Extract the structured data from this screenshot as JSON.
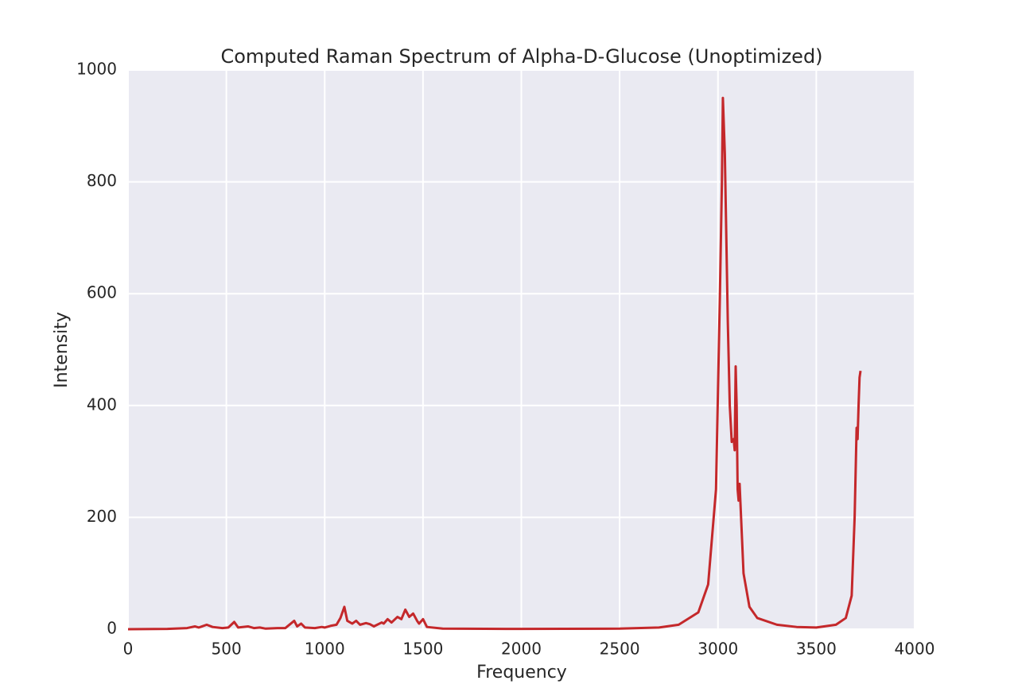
{
  "chart_data": {
    "type": "line",
    "title": "Computed Raman Spectrum of Alpha-D-Glucose (Unoptimized)",
    "x_label": "Frequency",
    "y_label": "Intensity",
    "xlim": [
      0,
      4000
    ],
    "ylim": [
      0,
      1000
    ],
    "xticks": [
      0,
      500,
      1000,
      1500,
      2000,
      2500,
      3000,
      3500,
      4000
    ],
    "yticks": [
      0,
      200,
      400,
      600,
      800,
      1000
    ],
    "grid": true,
    "series": [
      {
        "color": "#c4282b",
        "x": [
          0,
          200,
          300,
          340,
          360,
          400,
          430,
          480,
          510,
          540,
          560,
          610,
          640,
          670,
          700,
          760,
          800,
          845,
          860,
          880,
          900,
          950,
          985,
          1000,
          1030,
          1060,
          1080,
          1100,
          1115,
          1140,
          1160,
          1180,
          1210,
          1230,
          1250,
          1290,
          1300,
          1320,
          1340,
          1370,
          1390,
          1410,
          1430,
          1450,
          1470,
          1480,
          1500,
          1520,
          1600,
          2000,
          2500,
          2700,
          2800,
          2900,
          2950,
          2990,
          3010,
          3020,
          3025,
          3035,
          3050,
          3060,
          3070,
          3080,
          3085,
          3090,
          3095,
          3100,
          3105,
          3110,
          3115,
          3130,
          3160,
          3200,
          3300,
          3400,
          3500,
          3600,
          3650,
          3680,
          3695,
          3705,
          3710,
          3715,
          3720,
          3725
        ],
        "values": [
          0,
          0.5,
          2,
          5,
          3,
          8,
          4,
          2,
          3,
          13,
          3,
          5,
          2,
          3,
          1,
          2,
          2,
          15,
          5,
          10,
          3,
          2,
          4,
          3,
          6,
          8,
          20,
          40,
          15,
          10,
          15,
          8,
          11,
          9,
          5,
          12,
          10,
          18,
          12,
          22,
          18,
          35,
          22,
          28,
          15,
          10,
          18,
          4,
          1,
          0.5,
          1,
          3,
          8,
          30,
          80,
          250,
          600,
          800,
          950,
          850,
          550,
          400,
          335,
          340,
          320,
          470,
          400,
          250,
          230,
          260,
          220,
          100,
          40,
          20,
          8,
          4,
          3,
          8,
          20,
          60,
          200,
          360,
          340,
          400,
          450,
          462
        ]
      }
    ]
  }
}
